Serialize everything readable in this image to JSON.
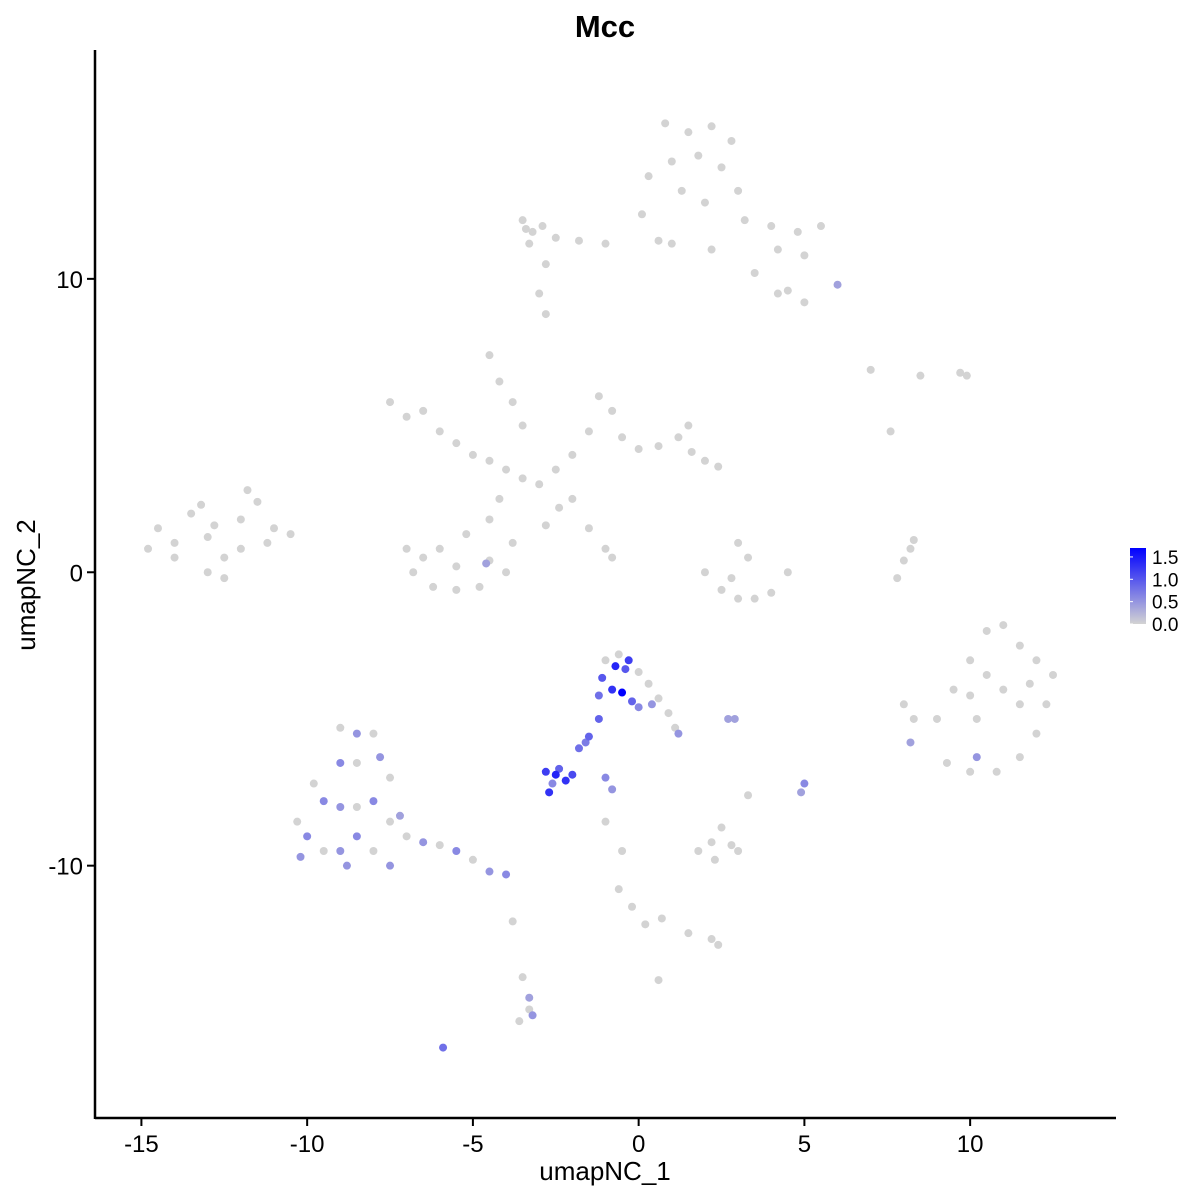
{
  "chart_data": {
    "type": "scatter",
    "title": "Mcc",
    "xlabel": "umapNC_1",
    "ylabel": "umapNC_2",
    "xlim": [
      -16.4,
      14.4
    ],
    "ylim": [
      -18.6,
      17.8
    ],
    "xticks": [
      -15,
      -10,
      -5,
      0,
      5,
      10
    ],
    "xtick_labels": [
      "-15",
      "-10",
      "-5",
      "0",
      "5",
      "10"
    ],
    "yticks": [
      -10,
      0,
      10
    ],
    "ytick_labels": [
      "-10",
      "0",
      "10"
    ],
    "grid": false,
    "legend": {
      "placement": "right",
      "type": "colorbar",
      "range": [
        0,
        1.7
      ],
      "ticks": [
        0,
        0.5,
        1.0,
        1.5
      ],
      "tick_labels": [
        "0.0",
        "0.5",
        "1.0",
        "1.5"
      ],
      "low_color": "#D3D3D3",
      "high_color": "#0000FF"
    },
    "point_format": [
      "umapNC_1",
      "umapNC_2",
      "expression"
    ],
    "points": [
      [
        -14.5,
        1.5,
        0
      ],
      [
        -14,
        1,
        0
      ],
      [
        -13.5,
        2,
        0
      ],
      [
        -13,
        1.2,
        0
      ],
      [
        -12.5,
        0.5,
        0
      ],
      [
        -12,
        1.8,
        0
      ],
      [
        -11.5,
        2.4,
        0
      ],
      [
        -11,
        1.5,
        0
      ],
      [
        -10.5,
        1.3,
        0
      ],
      [
        -13,
        0,
        0
      ],
      [
        -12.5,
        -0.2,
        0
      ],
      [
        -14,
        0.5,
        0
      ],
      [
        -13.2,
        2.3,
        0
      ],
      [
        -12,
        0.8,
        0
      ],
      [
        -11.8,
        2.8,
        0
      ],
      [
        -14.8,
        0.8,
        0
      ],
      [
        -11.2,
        1,
        0
      ],
      [
        -12.8,
        1.6,
        0
      ],
      [
        0.8,
        15.3,
        0
      ],
      [
        1.5,
        15,
        0
      ],
      [
        2.2,
        15.2,
        0
      ],
      [
        2.8,
        14.7,
        0
      ],
      [
        1,
        14,
        0
      ],
      [
        1.8,
        14.2,
        0
      ],
      [
        2.5,
        13.8,
        0
      ],
      [
        1.3,
        13,
        0
      ],
      [
        2,
        12.6,
        0
      ],
      [
        3,
        13,
        0
      ],
      [
        3.2,
        12,
        0
      ],
      [
        4,
        11.8,
        0
      ],
      [
        4.8,
        11.6,
        0
      ],
      [
        5.5,
        11.8,
        0
      ],
      [
        4.2,
        11,
        0
      ],
      [
        5,
        10.8,
        0
      ],
      [
        4.5,
        9.6,
        0
      ],
      [
        5,
        9.2,
        0
      ],
      [
        4.2,
        9.5,
        0
      ],
      [
        6,
        9.8,
        0.4
      ],
      [
        3.5,
        10.2,
        0
      ],
      [
        2.2,
        11,
        0
      ],
      [
        1,
        11.2,
        0
      ],
      [
        0.6,
        11.3,
        0
      ],
      [
        0.3,
        13.5,
        0
      ],
      [
        0.1,
        12.2,
        0
      ],
      [
        -1,
        11.2,
        0
      ],
      [
        -1.8,
        11.3,
        0
      ],
      [
        -2.5,
        11.4,
        0
      ],
      [
        -3.2,
        11.6,
        0
      ],
      [
        -3.5,
        12,
        0
      ],
      [
        -3.3,
        11.2,
        0
      ],
      [
        -2.9,
        11.8,
        0
      ],
      [
        -2.8,
        10.5,
        0
      ],
      [
        -3,
        9.5,
        0
      ],
      [
        -2.8,
        8.8,
        0
      ],
      [
        -3.4,
        11.7,
        0
      ],
      [
        -7.5,
        5.8,
        0
      ],
      [
        -7,
        5.3,
        0
      ],
      [
        -6.5,
        5.5,
        0
      ],
      [
        -6,
        4.8,
        0
      ],
      [
        -5.5,
        4.4,
        0
      ],
      [
        -5,
        4,
        0
      ],
      [
        -4.5,
        3.8,
        0
      ],
      [
        -4,
        3.5,
        0
      ],
      [
        -3.5,
        3.2,
        0
      ],
      [
        -3,
        3,
        0
      ],
      [
        -2.5,
        3.5,
        0
      ],
      [
        -2,
        4,
        0
      ],
      [
        -1.5,
        4.8,
        0
      ],
      [
        -1.2,
        6,
        0
      ],
      [
        -0.8,
        5.5,
        0
      ],
      [
        -0.5,
        4.6,
        0
      ],
      [
        0,
        4.2,
        0
      ],
      [
        0.6,
        4.3,
        0
      ],
      [
        1.2,
        4.6,
        0
      ],
      [
        1.6,
        4.1,
        0
      ],
      [
        2,
        3.8,
        0
      ],
      [
        2.4,
        3.6,
        0
      ],
      [
        1.5,
        5,
        0
      ],
      [
        -3.5,
        5,
        0
      ],
      [
        -4.5,
        7.4,
        0
      ],
      [
        -4.2,
        6.5,
        0
      ],
      [
        -3.8,
        5.8,
        0
      ],
      [
        -4.2,
        2.5,
        0
      ],
      [
        -4.5,
        1.8,
        0
      ],
      [
        -5.2,
        1.3,
        0
      ],
      [
        -6,
        0.8,
        0
      ],
      [
        -6.5,
        0.5,
        0
      ],
      [
        -7,
        0.8,
        0
      ],
      [
        -6.8,
        0,
        0
      ],
      [
        -6.2,
        -0.5,
        0
      ],
      [
        -5.5,
        -0.6,
        0
      ],
      [
        -4.8,
        -0.5,
        0
      ],
      [
        -4,
        0,
        0
      ],
      [
        -3.8,
        1,
        0
      ],
      [
        -4.5,
        0.4,
        0
      ],
      [
        -5.5,
        0.2,
        0
      ],
      [
        -2.8,
        1.6,
        0
      ],
      [
        -2.4,
        2.2,
        0
      ],
      [
        -2,
        2.5,
        0
      ],
      [
        -1.5,
        1.5,
        0
      ],
      [
        -1,
        0.8,
        0
      ],
      [
        -0.8,
        0.5,
        0
      ],
      [
        -4.6,
        0.3,
        0.4
      ],
      [
        2,
        0,
        0
      ],
      [
        2.5,
        -0.6,
        0
      ],
      [
        3,
        -0.9,
        0
      ],
      [
        3.5,
        -0.9,
        0
      ],
      [
        4,
        -0.7,
        0
      ],
      [
        4.5,
        0,
        0
      ],
      [
        3,
        1,
        0
      ],
      [
        3.3,
        0.5,
        0
      ],
      [
        2.8,
        -0.2,
        0
      ],
      [
        7.8,
        -0.2,
        0
      ],
      [
        8,
        0.4,
        0
      ],
      [
        8.2,
        0.8,
        0
      ],
      [
        8.3,
        1.1,
        0
      ],
      [
        7,
        6.9,
        0
      ],
      [
        8.5,
        6.7,
        0
      ],
      [
        9.7,
        6.8,
        0
      ],
      [
        9.9,
        6.7,
        0
      ],
      [
        7.6,
        4.8,
        0
      ],
      [
        9,
        -5,
        0
      ],
      [
        9.5,
        -4,
        0
      ],
      [
        10,
        -3,
        0
      ],
      [
        10.5,
        -2,
        0
      ],
      [
        11,
        -1.8,
        0
      ],
      [
        11.5,
        -2.5,
        0
      ],
      [
        12,
        -3,
        0
      ],
      [
        12.5,
        -3.5,
        0
      ],
      [
        12.3,
        -4.5,
        0
      ],
      [
        12,
        -5.5,
        0
      ],
      [
        11.5,
        -6.3,
        0
      ],
      [
        10.8,
        -6.8,
        0
      ],
      [
        10,
        -6.8,
        0
      ],
      [
        9.3,
        -6.5,
        0
      ],
      [
        10.2,
        -5,
        0
      ],
      [
        11,
        -4,
        0
      ],
      [
        10.5,
        -3.5,
        0
      ],
      [
        11.5,
        -4.5,
        0
      ],
      [
        10,
        -4.2,
        0
      ],
      [
        8,
        -4.5,
        0
      ],
      [
        8.3,
        -5,
        0
      ],
      [
        8.2,
        -5.8,
        0.4
      ],
      [
        10.2,
        -6.3,
        0.5
      ],
      [
        11.8,
        -3.8,
        0
      ],
      [
        -1,
        -3,
        0
      ],
      [
        -0.6,
        -2.8,
        0
      ],
      [
        -0.3,
        -3,
        1.2
      ],
      [
        0,
        -3.4,
        0
      ],
      [
        -1.1,
        -3.6,
        1.0
      ],
      [
        -0.8,
        -4,
        1.3
      ],
      [
        -0.5,
        -4.1,
        1.7
      ],
      [
        -0.2,
        -4.4,
        0.9
      ],
      [
        -1.2,
        -4.2,
        0.8
      ],
      [
        0.3,
        -3.8,
        0
      ],
      [
        0.6,
        -4.3,
        0
      ],
      [
        0.9,
        -4.8,
        0
      ],
      [
        1.1,
        -5.3,
        0
      ],
      [
        -0.4,
        -3.3,
        1.0
      ],
      [
        -0.7,
        -3.2,
        1.4
      ],
      [
        0,
        -4.6,
        0.6
      ],
      [
        0.4,
        -4.5,
        0.5
      ],
      [
        1.2,
        -5.5,
        0.5
      ],
      [
        -1.2,
        -5,
        0.9
      ],
      [
        -1.5,
        -5.6,
        0.9
      ],
      [
        -1.8,
        -6,
        0.8
      ],
      [
        -1.6,
        -5.8,
        0.7
      ],
      [
        -2.8,
        -6.8,
        1.2
      ],
      [
        -2.5,
        -6.9,
        1.4
      ],
      [
        -2.2,
        -7.1,
        1.3
      ],
      [
        -2.4,
        -6.7,
        0.9
      ],
      [
        -2,
        -6.9,
        1.1
      ],
      [
        -2.6,
        -7.2,
        0.6
      ],
      [
        -2.7,
        -7.5,
        1.3
      ],
      [
        -1,
        -7.0,
        0.6
      ],
      [
        -0.8,
        -7.4,
        0.5
      ],
      [
        -9,
        -5.3,
        0
      ],
      [
        -8.5,
        -5.5,
        0.5
      ],
      [
        -8,
        -5.5,
        0
      ],
      [
        -9,
        -6.5,
        0.6
      ],
      [
        -8.5,
        -6.5,
        0
      ],
      [
        -7.8,
        -6.3,
        0.5
      ],
      [
        -7.5,
        -7,
        0
      ],
      [
        -9.8,
        -7.2,
        0
      ],
      [
        -9.5,
        -7.8,
        0.6
      ],
      [
        -9,
        -8,
        0.5
      ],
      [
        -8.5,
        -8,
        0
      ],
      [
        -8,
        -7.8,
        0.6
      ],
      [
        -7.5,
        -8.5,
        0
      ],
      [
        -10.3,
        -8.5,
        0
      ],
      [
        -10,
        -9,
        0.6
      ],
      [
        -9.5,
        -9.5,
        0
      ],
      [
        -9,
        -9.5,
        0.5
      ],
      [
        -8.5,
        -9,
        0.6
      ],
      [
        -8,
        -9.5,
        0
      ],
      [
        -7.5,
        -10,
        0.5
      ],
      [
        -7,
        -9,
        0
      ],
      [
        -6.5,
        -9.2,
        0.5
      ],
      [
        -6,
        -9.3,
        0
      ],
      [
        -5.5,
        -9.5,
        0.6
      ],
      [
        -5,
        -9.8,
        0
      ],
      [
        -4.5,
        -10.2,
        0.5
      ],
      [
        -4,
        -10.3,
        0.6
      ],
      [
        -10.2,
        -9.7,
        0.5
      ],
      [
        -8.8,
        -10,
        0.5
      ],
      [
        -7.2,
        -8.3,
        0.4
      ],
      [
        1.8,
        -9.5,
        0
      ],
      [
        2.2,
        -9.2,
        0
      ],
      [
        2.5,
        -8.7,
        0
      ],
      [
        2.8,
        -9.3,
        0
      ],
      [
        3,
        -9.5,
        0
      ],
      [
        3.3,
        -7.6,
        0
      ],
      [
        2.3,
        -9.8,
        0
      ],
      [
        5,
        -7.2,
        0.6
      ],
      [
        4.9,
        -7.5,
        0.4
      ],
      [
        2.7,
        -5.0,
        0.4
      ],
      [
        2.9,
        -5.0,
        0.4
      ],
      [
        -0.5,
        -9.5,
        0
      ],
      [
        -0.6,
        -10.8,
        0
      ],
      [
        -0.2,
        -11.4,
        0
      ],
      [
        0.2,
        -12,
        0
      ],
      [
        0.7,
        -11.8,
        0
      ],
      [
        1.5,
        -12.3,
        0
      ],
      [
        2.2,
        -12.5,
        0
      ],
      [
        2.4,
        -12.7,
        0
      ],
      [
        -3.8,
        -11.9,
        0
      ],
      [
        0.6,
        -13.9,
        0
      ],
      [
        -1,
        -8.5,
        0
      ],
      [
        -3.5,
        -13.8,
        0
      ],
      [
        -3.3,
        -14.5,
        0.4
      ],
      [
        -3.2,
        -15.1,
        0.5
      ],
      [
        -3.6,
        -15.3,
        0
      ],
      [
        -3.3,
        -14.9,
        0
      ],
      [
        -5.9,
        -16.2,
        0.8
      ]
    ]
  }
}
